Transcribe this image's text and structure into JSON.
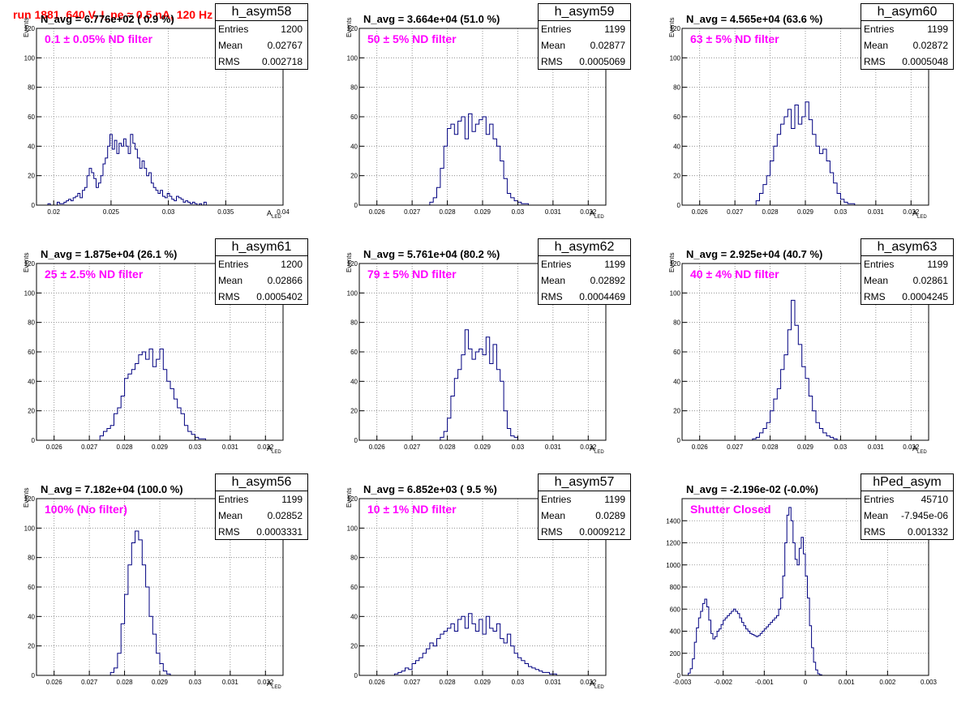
{
  "page_title": "run 1881,   640 V, I_pe ≈ 0.5 nA, 120 Hz",
  "colors": {
    "title": "#ff0000",
    "annotation": "#ff00ff",
    "hist": "#000080",
    "grid": "#808080"
  },
  "labels": {
    "entries": "Entries",
    "mean": "Mean",
    "rms": "RMS",
    "events": "Events",
    "x_main": "A",
    "x_sub": "LED"
  },
  "panels": [
    {
      "name": "h_asym58",
      "navg": "N_avg = 6.776e+02 ( 0.9 %)",
      "filter": "0.1 ± 0.05% ND filter",
      "entries": "1200",
      "mean": "0.02767",
      "rms": "0.002718"
    },
    {
      "name": "h_asym59",
      "navg": "N_avg = 3.664e+04 (51.0 %)",
      "filter": "50 ± 5% ND filter",
      "entries": "1199",
      "mean": "0.02877",
      "rms": "0.0005069"
    },
    {
      "name": "h_asym60",
      "navg": "N_avg = 4.565e+04 (63.6 %)",
      "filter": "63 ± 5% ND filter",
      "entries": "1199",
      "mean": "0.02872",
      "rms": "0.0005048"
    },
    {
      "name": "h_asym61",
      "navg": "N_avg = 1.875e+04 (26.1 %)",
      "filter": "25 ± 2.5% ND filter",
      "entries": "1200",
      "mean": "0.02866",
      "rms": "0.0005402"
    },
    {
      "name": "h_asym62",
      "navg": "N_avg = 5.761e+04 (80.2 %)",
      "filter": "79 ± 5% ND filter",
      "entries": "1199",
      "mean": "0.02892",
      "rms": "0.0004469"
    },
    {
      "name": "h_asym63",
      "navg": "N_avg = 2.925e+04 (40.7 %)",
      "filter": "40 ± 4% ND filter",
      "entries": "1199",
      "mean": "0.02861",
      "rms": "0.0004245"
    },
    {
      "name": "h_asym56",
      "navg": "N_avg = 7.182e+04 (100.0 %)",
      "filter": "100% (No filter)",
      "entries": "1199",
      "mean": "0.02852",
      "rms": "0.0003331"
    },
    {
      "name": "h_asym57",
      "navg": "N_avg = 6.852e+03 ( 9.5 %)",
      "filter": "10 ± 1% ND filter",
      "entries": "1199",
      "mean": "0.0289",
      "rms": "0.0009212"
    },
    {
      "name": "hPed_asym",
      "navg": "N_avg = -2.196e-02 (-0.0%)",
      "filter": "Shutter Closed",
      "entries": "45710",
      "mean": "-7.945e-06",
      "rms": "0.001332"
    }
  ],
  "chart_data": [
    {
      "type": "bar",
      "name": "h_asym58",
      "xlabel": "A_LED",
      "ylabel": "Events",
      "grid": true,
      "xlim": [
        0.0185,
        0.04
      ],
      "ylim": [
        0,
        120
      ],
      "xticks": [
        0.02,
        0.025,
        0.03,
        0.035,
        0.04
      ],
      "xticklabels": [
        "0.02",
        "0.025",
        "0.03",
        "0.035",
        "0.04"
      ],
      "yticks": [
        0,
        20,
        40,
        60,
        80,
        100,
        120
      ],
      "yticklabels": [
        "0",
        "20",
        "40",
        "60",
        "80",
        "100",
        "120"
      ],
      "bin_start": 0.0195,
      "bin_width": 0.0002,
      "values": [
        1,
        0,
        0,
        0,
        2,
        1,
        1,
        2,
        3,
        4,
        3,
        5,
        6,
        8,
        5,
        10,
        12,
        20,
        25,
        22,
        18,
        12,
        15,
        20,
        28,
        32,
        40,
        48,
        38,
        44,
        35,
        42,
        40,
        45,
        40,
        35,
        48,
        42,
        38,
        32,
        25,
        30,
        25,
        20,
        22,
        15,
        12,
        10,
        8,
        10,
        6,
        5,
        8,
        6,
        4,
        3,
        6,
        5,
        4,
        2,
        3,
        2,
        1,
        2,
        1,
        0,
        1,
        0,
        2,
        0
      ]
    },
    {
      "type": "bar",
      "name": "h_asym59",
      "xlabel": "A_LED",
      "ylabel": "Events",
      "grid": true,
      "xlim": [
        0.0255,
        0.0325
      ],
      "ylim": [
        0,
        120
      ],
      "xticks": [
        0.026,
        0.027,
        0.028,
        0.029,
        0.03,
        0.031,
        0.032
      ],
      "xticklabels": [
        "0.026",
        "0.027",
        "0.028",
        "0.029",
        "0.03",
        "0.031",
        "0.032"
      ],
      "yticks": [
        0,
        20,
        40,
        60,
        80,
        100,
        120
      ],
      "yticklabels": [
        "0",
        "20",
        "40",
        "60",
        "80",
        "100",
        "120"
      ],
      "bin_start": 0.0275,
      "bin_width": 0.0001,
      "values": [
        2,
        5,
        12,
        25,
        40,
        52,
        55,
        48,
        57,
        60,
        45,
        62,
        50,
        55,
        58,
        60,
        48,
        55,
        45,
        40,
        30,
        18,
        8,
        5,
        3,
        2,
        1,
        1
      ]
    },
    {
      "type": "bar",
      "name": "h_asym60",
      "xlabel": "A_LED",
      "ylabel": "Events",
      "grid": true,
      "xlim": [
        0.0255,
        0.0325
      ],
      "ylim": [
        0,
        120
      ],
      "xticks": [
        0.026,
        0.027,
        0.028,
        0.029,
        0.03,
        0.031,
        0.032
      ],
      "xticklabels": [
        "0.026",
        "0.027",
        "0.028",
        "0.029",
        "0.03",
        "0.031",
        "0.032"
      ],
      "yticks": [
        0,
        20,
        40,
        60,
        80,
        100,
        120
      ],
      "yticklabels": [
        "0",
        "20",
        "40",
        "60",
        "80",
        "100",
        "120"
      ],
      "bin_start": 0.0276,
      "bin_width": 0.0001,
      "values": [
        3,
        8,
        14,
        20,
        30,
        40,
        48,
        55,
        60,
        65,
        52,
        68,
        55,
        60,
        70,
        58,
        48,
        40,
        35,
        38,
        30,
        22,
        15,
        8,
        4,
        2,
        1,
        1
      ]
    },
    {
      "type": "bar",
      "name": "h_asym61",
      "xlabel": "A_LED",
      "ylabel": "Events",
      "grid": true,
      "xlim": [
        0.0255,
        0.0325
      ],
      "ylim": [
        0,
        120
      ],
      "xticks": [
        0.026,
        0.027,
        0.028,
        0.029,
        0.03,
        0.031,
        0.032
      ],
      "xticklabels": [
        "0.026",
        "0.027",
        "0.028",
        "0.029",
        "0.03",
        "0.031",
        "0.032"
      ],
      "yticks": [
        0,
        20,
        40,
        60,
        80,
        100,
        120
      ],
      "yticklabels": [
        "0",
        "20",
        "40",
        "60",
        "80",
        "100",
        "120"
      ],
      "bin_start": 0.0273,
      "bin_width": 0.0001,
      "values": [
        3,
        6,
        8,
        10,
        18,
        22,
        30,
        42,
        45,
        48,
        52,
        58,
        60,
        55,
        62,
        50,
        55,
        62,
        48,
        40,
        35,
        28,
        22,
        18,
        10,
        6,
        4,
        2,
        1,
        1
      ]
    },
    {
      "type": "bar",
      "name": "h_asym62",
      "xlabel": "A_LED",
      "ylabel": "Events",
      "grid": true,
      "xlim": [
        0.0255,
        0.0325
      ],
      "ylim": [
        0,
        120
      ],
      "xticks": [
        0.026,
        0.027,
        0.028,
        0.029,
        0.03,
        0.031,
        0.032
      ],
      "xticklabels": [
        "0.026",
        "0.027",
        "0.028",
        "0.029",
        "0.03",
        "0.031",
        "0.032"
      ],
      "yticks": [
        0,
        20,
        40,
        60,
        80,
        100,
        120
      ],
      "yticklabels": [
        "0",
        "20",
        "40",
        "60",
        "80",
        "100",
        "120"
      ],
      "bin_start": 0.0278,
      "bin_width": 0.0001,
      "values": [
        2,
        6,
        15,
        30,
        42,
        48,
        58,
        75,
        62,
        55,
        60,
        62,
        58,
        70,
        52,
        65,
        48,
        40,
        20,
        8,
        3,
        2
      ]
    },
    {
      "type": "bar",
      "name": "h_asym63",
      "xlabel": "A_LED",
      "ylabel": "Events",
      "grid": true,
      "xlim": [
        0.0255,
        0.0325
      ],
      "ylim": [
        0,
        120
      ],
      "xticks": [
        0.026,
        0.027,
        0.028,
        0.029,
        0.03,
        0.031,
        0.032
      ],
      "xticklabels": [
        "0.026",
        "0.027",
        "0.028",
        "0.029",
        "0.03",
        "0.031",
        "0.032"
      ],
      "yticks": [
        0,
        20,
        40,
        60,
        80,
        100,
        120
      ],
      "yticklabels": [
        "0",
        "20",
        "40",
        "60",
        "80",
        "100",
        "120"
      ],
      "bin_start": 0.0275,
      "bin_width": 0.0001,
      "values": [
        1,
        2,
        5,
        8,
        12,
        20,
        28,
        35,
        48,
        58,
        75,
        95,
        78,
        65,
        50,
        42,
        30,
        20,
        12,
        8,
        5,
        3,
        2,
        1
      ]
    },
    {
      "type": "bar",
      "name": "h_asym56",
      "xlabel": "A_LED",
      "ylabel": "Events",
      "grid": true,
      "xlim": [
        0.0255,
        0.0325
      ],
      "ylim": [
        0,
        120
      ],
      "xticks": [
        0.026,
        0.027,
        0.028,
        0.029,
        0.03,
        0.031,
        0.032
      ],
      "xticklabels": [
        "0.026",
        "0.027",
        "0.028",
        "0.029",
        "0.03",
        "0.031",
        "0.032"
      ],
      "yticks": [
        0,
        20,
        40,
        60,
        80,
        100,
        120
      ],
      "yticklabels": [
        "0",
        "20",
        "40",
        "60",
        "80",
        "100",
        "120"
      ],
      "bin_start": 0.0276,
      "bin_width": 0.0001,
      "values": [
        2,
        5,
        15,
        35,
        55,
        75,
        90,
        98,
        92,
        75,
        60,
        40,
        28,
        15,
        8,
        3,
        1
      ]
    },
    {
      "type": "bar",
      "name": "h_asym57",
      "xlabel": "A_LED",
      "ylabel": "Events",
      "grid": true,
      "xlim": [
        0.0255,
        0.0325
      ],
      "ylim": [
        0,
        120
      ],
      "xticks": [
        0.026,
        0.027,
        0.028,
        0.029,
        0.03,
        0.031,
        0.032
      ],
      "xticklabels": [
        "0.026",
        "0.027",
        "0.028",
        "0.029",
        "0.03",
        "0.031",
        "0.032"
      ],
      "yticks": [
        0,
        20,
        40,
        60,
        80,
        100,
        120
      ],
      "yticklabels": [
        "0",
        "20",
        "40",
        "60",
        "80",
        "100",
        "120"
      ],
      "bin_start": 0.0265,
      "bin_width": 0.0001,
      "values": [
        1,
        2,
        3,
        5,
        4,
        8,
        10,
        12,
        15,
        18,
        22,
        20,
        25,
        28,
        30,
        32,
        35,
        30,
        38,
        40,
        32,
        42,
        35,
        30,
        38,
        28,
        40,
        32,
        30,
        35,
        25,
        22,
        28,
        20,
        15,
        12,
        10,
        8,
        6,
        5,
        4,
        3,
        2,
        2,
        1,
        1
      ]
    },
    {
      "type": "bar",
      "name": "hPed_asym",
      "xlabel": "",
      "ylabel": "",
      "grid": true,
      "xlim": [
        -0.003,
        0.003
      ],
      "ylim": [
        0,
        1600
      ],
      "xticks": [
        -0.003,
        -0.002,
        -0.001,
        0,
        0.001,
        0.002,
        0.003
      ],
      "xticklabels": [
        "-0.003",
        "-0.002",
        "-0.001",
        "0",
        "0.001",
        "0.002",
        "0.003"
      ],
      "yticks": [
        0,
        200,
        400,
        600,
        800,
        1000,
        1200,
        1400
      ],
      "yticklabels": [
        "0",
        "200",
        "400",
        "600",
        "800",
        "1000",
        "1200",
        "1400"
      ],
      "bin_start": -0.00285,
      "bin_width": 5e-05,
      "values": [
        20,
        60,
        150,
        300,
        430,
        520,
        580,
        650,
        690,
        620,
        500,
        380,
        330,
        350,
        400,
        420,
        460,
        500,
        520,
        540,
        560,
        580,
        600,
        580,
        560,
        520,
        480,
        450,
        420,
        400,
        380,
        370,
        360,
        350,
        360,
        380,
        400,
        420,
        440,
        460,
        480,
        500,
        520,
        540,
        600,
        700,
        900,
        1200,
        1450,
        1520,
        1400,
        1200,
        1050,
        1000,
        1150,
        1250,
        1100,
        900,
        700,
        450,
        250,
        120,
        50,
        15,
        5
      ]
    }
  ]
}
